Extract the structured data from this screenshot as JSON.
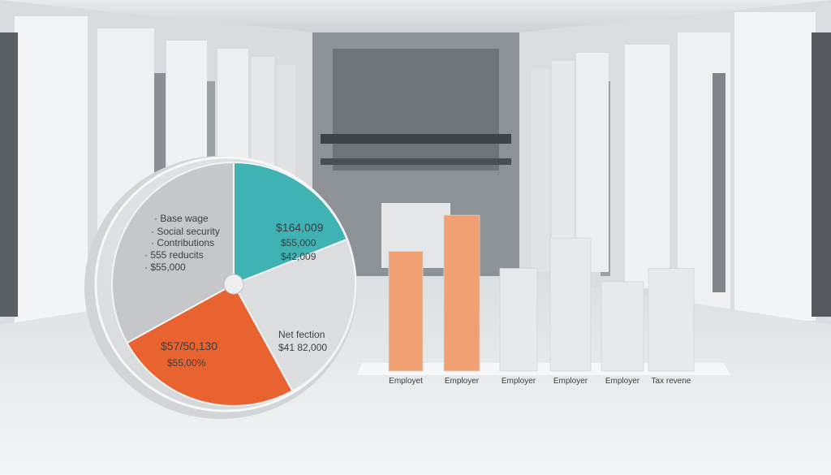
{
  "chart_data": [
    {
      "type": "pie",
      "slices": [
        {
          "name": "top-right",
          "fraction": 0.19,
          "color": "#3fb3b3"
        },
        {
          "name": "bottom-right",
          "fraction": 0.23,
          "color": "#dcdddf"
        },
        {
          "name": "bottom-left",
          "fraction": 0.25,
          "color": "#e8632f"
        },
        {
          "name": "top-left",
          "fraction": 0.33,
          "color": "#c5c7c9"
        }
      ],
      "labels": {
        "list": [
          "· Base wage",
          "· Social security",
          "· Contributions",
          "· 555 reducits",
          "· $55,000"
        ],
        "teal": [
          "$164,009",
          "$55,000",
          "$42,009"
        ],
        "orange": [
          "$57/50,130",
          "$55,00%"
        ],
        "gray": [
          "Net fection",
          "$41 82,000"
        ]
      }
    },
    {
      "type": "bar",
      "categories": [
        "Employet",
        "Employer",
        "Employer",
        "Employer",
        "Employer",
        "Tax revene"
      ],
      "series": [
        {
          "values": [
            63,
            82,
            54,
            70,
            47,
            54
          ]
        }
      ],
      "colors": [
        "#f0a073",
        "#f0a073",
        "#e8e9ea",
        "#e8e9ea",
        "#e8e9ea",
        "#e8e9ea"
      ],
      "ylim": [
        0,
        100
      ]
    }
  ]
}
